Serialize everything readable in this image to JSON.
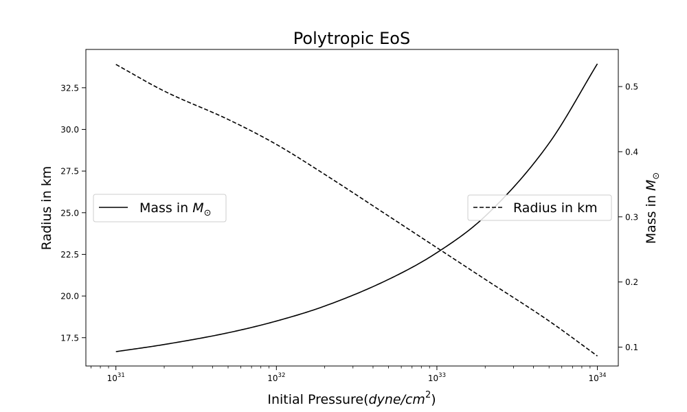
{
  "chart_data": {
    "type": "line",
    "title": "Polytropic EoS",
    "xlabel": {
      "prefix": "Initial Pressure(",
      "math": "dyne/cm",
      "exp": "2",
      "suffix": ")"
    },
    "x_scale": "log",
    "xlim": [
      6.5e+30,
      1.35e+34
    ],
    "x_ticks": [
      {
        "base": "10",
        "exp": "31",
        "value": 1e+31
      },
      {
        "base": "10",
        "exp": "32",
        "value": 1e+32
      },
      {
        "base": "10",
        "exp": "33",
        "value": 1e+33
      },
      {
        "base": "10",
        "exp": "34",
        "value": 1e+34
      }
    ],
    "y_left": {
      "label": "Radius in km",
      "lim": [
        15.8,
        34.8
      ],
      "ticks": [
        "17.5",
        "20.0",
        "22.5",
        "25.0",
        "27.5",
        "30.0",
        "32.5"
      ]
    },
    "y_right": {
      "label": {
        "prefix": "Mass in ",
        "math": "M",
        "sub": "⊙"
      },
      "lim": [
        0.071,
        0.557
      ],
      "ticks": [
        "0.1",
        "0.2",
        "0.3",
        "0.4",
        "0.5"
      ]
    },
    "series": [
      {
        "name": "Radius in km",
        "axis": "left",
        "style": "dashed",
        "color": "#000000",
        "x": [
          1e+31,
          2e+31,
          5e+31,
          1e+32,
          2e+32,
          5e+32,
          1e+33,
          2e+33,
          5e+33,
          1e+34
        ],
        "y": [
          33.9,
          32.3,
          30.6,
          29.1,
          27.3,
          24.8,
          22.9,
          21.0,
          18.5,
          16.4
        ]
      },
      {
        "name": {
          "prefix": "Mass in ",
          "math": "M",
          "sub": "⊙"
        },
        "axis": "right",
        "style": "solid",
        "color": "#000000",
        "x": [
          1e+31,
          2e+31,
          5e+31,
          1e+32,
          2e+32,
          5e+32,
          1e+33,
          2e+33,
          5e+33,
          1e+34
        ],
        "y": [
          0.093,
          0.104,
          0.122,
          0.14,
          0.163,
          0.204,
          0.245,
          0.301,
          0.413,
          0.535
        ]
      }
    ],
    "legends": [
      "center-left",
      "center-right"
    ],
    "grid": false
  }
}
